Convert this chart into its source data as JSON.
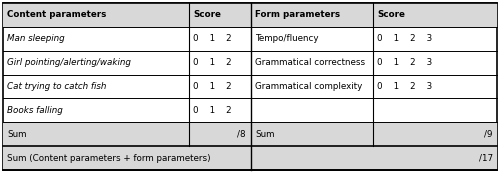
{
  "bg_color": "#ffffff",
  "rows": [
    {
      "type": "header",
      "left_label": "Content parameters",
      "left_score": "Score",
      "right_label": "Form parameters",
      "right_score": "Score",
      "bold": true,
      "italic_left": false,
      "italic_right": false
    },
    {
      "type": "data",
      "left_label": "Man sleeping",
      "left_score": "0    1    2",
      "right_label": "Tempo/fluency",
      "right_score": "0    1    2    3",
      "italic_left": true,
      "italic_right": false
    },
    {
      "type": "data",
      "left_label": "Girl pointing/alerting/waking",
      "left_score": "0    1    2",
      "right_label": "Grammatical correctness",
      "right_score": "0    1    2    3",
      "italic_left": true,
      "italic_right": false
    },
    {
      "type": "data",
      "left_label": "Cat trying to catch fish",
      "left_score": "0    1    2",
      "right_label": "Grammatical complexity",
      "right_score": "0    1    2    3",
      "italic_left": true,
      "italic_right": false
    },
    {
      "type": "data",
      "left_label": "Books falling",
      "left_score": "0    1    2",
      "right_label": "",
      "right_score": "",
      "italic_left": true,
      "italic_right": false
    },
    {
      "type": "sum",
      "left_label": "Sum",
      "left_score": "/8",
      "right_label": "Sum",
      "right_score": "/9",
      "bold": false,
      "italic_left": false,
      "italic_right": false
    }
  ],
  "bottom_row": "Sum (Content parameters + form parameters)",
  "bottom_score": "/17",
  "shaded_color": "#d8d8d8",
  "line_color": "#000000"
}
